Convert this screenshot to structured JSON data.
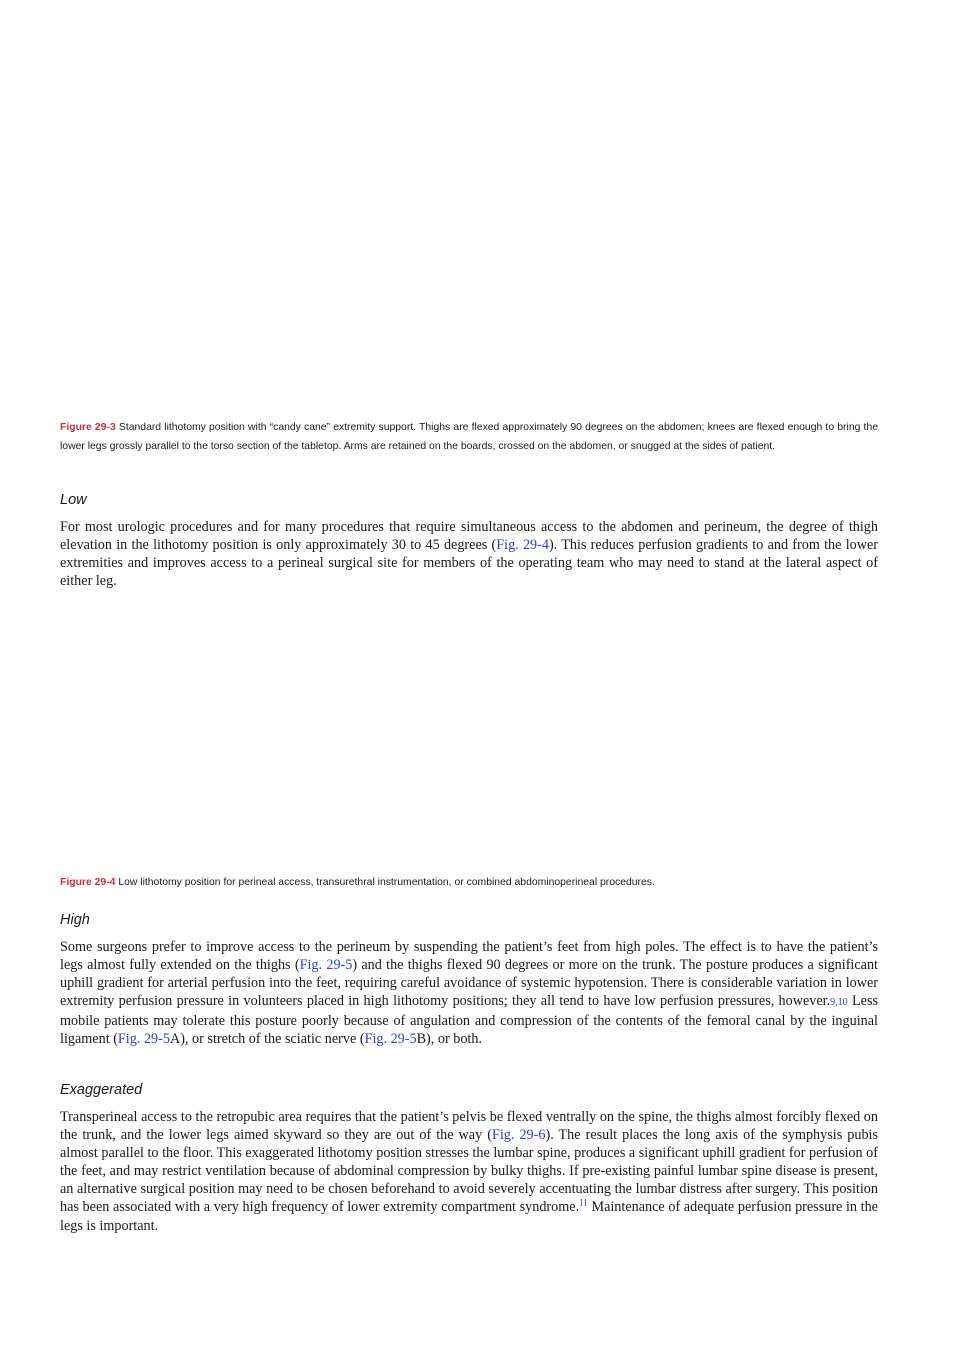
{
  "fig293": {
    "label": "Figure 29-3",
    "text": " Standard lithotomy position with “candy cane” extremity support. Thighs are flexed approximately 90 degrees on the abdomen; knees are flexed enough to bring the lower legs grossly parallel to the torso section of the tabletop. Arms are retained on the boards, crossed on the abdomen, or snugged at the sides of patient."
  },
  "low": {
    "heading": "Low",
    "p1": "For most urologic procedures and for many procedures that require simultaneous access to the abdomen and perineum, the degree of thigh elevation in the lithotomy position is only approximately 30 to 45 degrees (",
    "ref1": "Fig. 29-4",
    "p2": "). This reduces perfusion gradients to and from the lower extremities and improves access to a perineal surgical site for members of the operating team who may need to stand at the lateral aspect of either leg."
  },
  "fig294": {
    "label": "Figure 29-4",
    "text": " Low lithotomy position for perineal access, transurethral instrumentation, or combined abdominoperineal procedures."
  },
  "high": {
    "heading": "High",
    "p1": "Some surgeons prefer to improve access to the perineum by suspending the patient’s feet from high poles. The effect is to have the patient’s legs almost fully extended on the thighs (",
    "ref1": "Fig. 29-5",
    "p2": ") and the thighs flexed 90 degrees or more on the trunk. The posture produces a significant uphill gradient for arterial perfusion into the feet, requiring careful avoidance of systemic hypotension. There is considerable variation in lower extremity perfusion pressure in volunteers placed in high lithotomy positions; they all tend to have low perfusion pressures, however.",
    "cite": "9,10",
    "p3": " Less mobile patients may tolerate this posture poorly because of angulation and compression of the contents of the femoral canal by the inguinal ligament (",
    "ref2": "Fig. 29-5",
    "p4": "A), or stretch of the sciatic nerve (",
    "ref3": "Fig. 29-5",
    "p5": "B), or both."
  },
  "exaggerated": {
    "heading": "Exaggerated",
    "p1": "Transperineal access to the retropubic area requires that the patient’s pelvis be flexed ventrally on the spine, the thighs almost forcibly flexed on the trunk, and the lower legs aimed skyward so they are out of the way (",
    "ref1": "Fig. 29-6",
    "p2": "). The result places the long axis of the symphysis pubis almost parallel to the floor. This exaggerated lithotomy position stresses the lumbar spine, produces a significant uphill gradient for perfusion of the feet, and may restrict ventilation because of abdominal compression by bulky thighs. If pre-existing painful lumbar spine disease is present, an alternative surgical position may need to be chosen beforehand to avoid severely accentuating the lumbar distress after surgery. This position has been associated with a very high frequency of lower extremity compartment syndrome.",
    "cite": "11",
    "p3": " Maintenance of adequate perfusion pressure in the legs is important."
  }
}
